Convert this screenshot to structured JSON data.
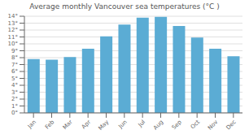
{
  "chart_data": {
    "type": "bar",
    "title": "Average monthly Vancouver sea temperatures (°C )",
    "categories": [
      "Jan",
      "Feb",
      "Mar",
      "Apr",
      "May",
      "Jun",
      "Jul",
      "Aug",
      "Sep",
      "Oct",
      "Nov",
      "Dec"
    ],
    "values": [
      7.8,
      7.7,
      8.1,
      9.3,
      11.1,
      12.8,
      13.8,
      13.9,
      12.6,
      10.9,
      9.3,
      8.2
    ],
    "color": "#5bacd4",
    "ylim": [
      0,
      14
    ],
    "yticks": [
      {
        "value": 0,
        "label": "0°"
      },
      {
        "value": 1,
        "label": "1°"
      },
      {
        "value": 2,
        "label": "2°"
      },
      {
        "value": 3,
        "label": "3°"
      },
      {
        "value": 4,
        "label": "4°"
      },
      {
        "value": 5,
        "label": "5°"
      },
      {
        "value": 6,
        "label": "6°"
      },
      {
        "value": 7,
        "label": "7°"
      },
      {
        "value": 8,
        "label": "8°"
      },
      {
        "value": 9,
        "label": "9°"
      },
      {
        "value": 10,
        "label": "10°"
      },
      {
        "value": 11,
        "label": "11°"
      },
      {
        "value": 12,
        "label": "12°"
      },
      {
        "value": 13,
        "label": "13°"
      },
      {
        "value": 14,
        "label": "14°"
      }
    ],
    "grid": true
  }
}
